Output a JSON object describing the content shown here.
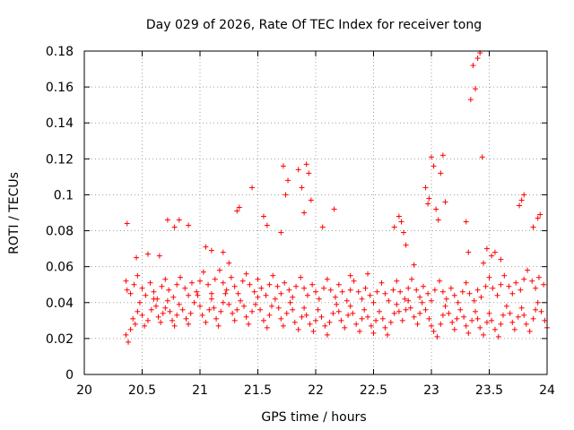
{
  "chart_data": {
    "type": "scatter",
    "title": "Day 029 of 2026, Rate Of TEC Index for receiver tong",
    "xlabel": "GPS time / hours",
    "ylabel": "ROTI / TECUs",
    "xlim": [
      20,
      24
    ],
    "ylim": [
      0,
      0.18
    ],
    "xticks": [
      "20",
      "20.5",
      "21",
      "21.5",
      "22",
      "22.5",
      "23",
      "23.5",
      "24"
    ],
    "yticks": [
      "0",
      "0.02",
      "0.04",
      "0.06",
      "0.08",
      "0.1",
      "0.12",
      "0.14",
      "0.16",
      "0.18"
    ],
    "grid": true,
    "marker": "+",
    "color": "#ff0000",
    "series": [
      {
        "name": "ROTI",
        "x": [
          20.36,
          20.38,
          20.4,
          20.42,
          20.44,
          20.46,
          20.48,
          20.5,
          20.52,
          20.55,
          20.58,
          20.6,
          20.62,
          20.64,
          20.66,
          20.68,
          20.7,
          20.72,
          20.74,
          20.76,
          20.78,
          20.8,
          20.82,
          20.85,
          20.88,
          20.9,
          20.92,
          20.95,
          20.98,
          21.0,
          21.02,
          21.05,
          21.08,
          21.1,
          21.12,
          21.14,
          21.16,
          21.18,
          21.2,
          21.22,
          21.25,
          21.28,
          21.3,
          21.32,
          21.35,
          21.38,
          21.4,
          21.42,
          21.45,
          21.48,
          21.5,
          21.52,
          21.55,
          21.58,
          21.6,
          21.62,
          21.65,
          21.68,
          21.7,
          21.72,
          21.75,
          21.78,
          21.8,
          21.82,
          21.85,
          21.88,
          21.9,
          21.92,
          21.95,
          21.98,
          22.0,
          22.02,
          22.05,
          22.08,
          22.1,
          22.12,
          22.15,
          22.18,
          22.2,
          22.22,
          22.25,
          22.28,
          22.3,
          22.32,
          22.35,
          22.38,
          22.4,
          22.42,
          22.45,
          22.48,
          22.5,
          22.52,
          22.55,
          22.58,
          22.6,
          22.62,
          22.65,
          22.68,
          22.7,
          22.72,
          22.75,
          22.78,
          22.8,
          22.82,
          22.85,
          22.88,
          22.9,
          22.92,
          22.95,
          22.98,
          23.0,
          23.02,
          23.05,
          23.08,
          23.1,
          23.12,
          23.15,
          23.18,
          23.2,
          23.22,
          23.25,
          23.28,
          23.3,
          23.32,
          23.35,
          23.38,
          23.4,
          23.42,
          23.45,
          23.48,
          23.5,
          23.52,
          23.55,
          23.58,
          23.6,
          23.62,
          23.65,
          23.68,
          23.7,
          23.72,
          23.75,
          23.78,
          23.8,
          23.82,
          23.85,
          23.88,
          23.9,
          23.92,
          23.95,
          23.98,
          24.0,
          20.36,
          20.37,
          20.4,
          20.43,
          20.46,
          20.5,
          20.53,
          20.57,
          20.6,
          20.63,
          20.67,
          20.7,
          20.73,
          20.77,
          20.8,
          20.83,
          20.87,
          20.9,
          20.93,
          20.97,
          21.0,
          21.03,
          21.07,
          21.1,
          21.13,
          21.17,
          21.2,
          21.23,
          21.27,
          21.3,
          21.33,
          21.37,
          21.4,
          21.43,
          21.47,
          21.5,
          21.53,
          21.57,
          21.6,
          21.63,
          21.67,
          21.7,
          21.73,
          21.77,
          21.8,
          21.83,
          21.87,
          21.9,
          21.93,
          21.97,
          22.0,
          22.03,
          22.07,
          22.1,
          22.13,
          22.17,
          22.2,
          22.23,
          22.27,
          22.3,
          22.33,
          22.37,
          22.4,
          22.43,
          22.47,
          22.5,
          22.53,
          22.57,
          22.6,
          22.63,
          22.67,
          22.7,
          22.73,
          22.77,
          22.8,
          22.83,
          22.87,
          22.9,
          22.93,
          22.97,
          23.0,
          23.03,
          23.07,
          23.1,
          23.13,
          23.17,
          23.2,
          23.23,
          23.27,
          23.3,
          23.33,
          23.37,
          23.4,
          23.43,
          23.47,
          23.5,
          23.53,
          23.57,
          23.6,
          23.63,
          23.67,
          23.7,
          23.73,
          23.77,
          23.8,
          23.83,
          23.87,
          23.9,
          23.93,
          23.97,
          20.37,
          20.45,
          20.55,
          20.72,
          20.78,
          20.82,
          21.05,
          21.1,
          21.32,
          21.34,
          21.45,
          21.55,
          21.58,
          21.7,
          21.72,
          21.74,
          21.76,
          21.85,
          21.88,
          21.9,
          21.92,
          21.94,
          21.96,
          22.06,
          22.16,
          22.68,
          22.72,
          22.74,
          22.76,
          22.78,
          22.95,
          22.97,
          22.98,
          23.0,
          23.02,
          23.04,
          23.06,
          23.08,
          23.1,
          23.12,
          23.3,
          23.32,
          23.34,
          23.36,
          23.38,
          23.4,
          23.42,
          23.44,
          23.76,
          23.78,
          23.8,
          23.92,
          23.94,
          23.88,
          23.6,
          23.55,
          23.45,
          23.48,
          23.52,
          21.2,
          21.25,
          20.65,
          20.9,
          22.3,
          22.85,
          22.45
        ],
        "y": [
          0.022,
          0.018,
          0.025,
          0.031,
          0.028,
          0.035,
          0.04,
          0.033,
          0.027,
          0.03,
          0.036,
          0.042,
          0.038,
          0.032,
          0.029,
          0.034,
          0.037,
          0.041,
          0.035,
          0.03,
          0.027,
          0.033,
          0.039,
          0.036,
          0.031,
          0.028,
          0.034,
          0.04,
          0.044,
          0.038,
          0.033,
          0.029,
          0.036,
          0.042,
          0.037,
          0.031,
          0.027,
          0.035,
          0.04,
          0.045,
          0.039,
          0.034,
          0.03,
          0.036,
          0.041,
          0.038,
          0.032,
          0.028,
          0.035,
          0.039,
          0.043,
          0.036,
          0.03,
          0.026,
          0.033,
          0.038,
          0.042,
          0.037,
          0.031,
          0.027,
          0.034,
          0.04,
          0.036,
          0.029,
          0.025,
          0.032,
          0.037,
          0.033,
          0.028,
          0.024,
          0.03,
          0.036,
          0.032,
          0.027,
          0.022,
          0.029,
          0.034,
          0.039,
          0.035,
          0.03,
          0.026,
          0.033,
          0.038,
          0.034,
          0.028,
          0.024,
          0.031,
          0.036,
          0.032,
          0.027,
          0.023,
          0.03,
          0.035,
          0.031,
          0.026,
          0.022,
          0.029,
          0.034,
          0.039,
          0.035,
          0.03,
          0.036,
          0.041,
          0.037,
          0.032,
          0.028,
          0.034,
          0.04,
          0.036,
          0.031,
          0.027,
          0.024,
          0.021,
          0.028,
          0.033,
          0.038,
          0.034,
          0.029,
          0.025,
          0.031,
          0.036,
          0.032,
          0.027,
          0.023,
          0.03,
          0.035,
          0.031,
          0.026,
          0.022,
          0.029,
          0.034,
          0.03,
          0.025,
          0.021,
          0.028,
          0.033,
          0.038,
          0.034,
          0.029,
          0.025,
          0.032,
          0.037,
          0.033,
          0.028,
          0.024,
          0.031,
          0.036,
          0.04,
          0.035,
          0.03,
          0.026,
          0.052,
          0.047,
          0.045,
          0.05,
          0.055,
          0.048,
          0.044,
          0.051,
          0.046,
          0.042,
          0.049,
          0.053,
          0.047,
          0.043,
          0.05,
          0.054,
          0.048,
          0.044,
          0.051,
          0.046,
          0.052,
          0.057,
          0.05,
          0.045,
          0.053,
          0.058,
          0.051,
          0.047,
          0.054,
          0.049,
          0.045,
          0.052,
          0.056,
          0.05,
          0.046,
          0.053,
          0.048,
          0.044,
          0.05,
          0.055,
          0.049,
          0.045,
          0.051,
          0.047,
          0.043,
          0.049,
          0.054,
          0.048,
          0.044,
          0.05,
          0.046,
          0.042,
          0.048,
          0.053,
          0.047,
          0.043,
          0.05,
          0.046,
          0.041,
          0.047,
          0.052,
          0.046,
          0.042,
          0.048,
          0.044,
          0.04,
          0.046,
          0.051,
          0.045,
          0.041,
          0.047,
          0.052,
          0.046,
          0.042,
          0.048,
          0.053,
          0.047,
          0.043,
          0.049,
          0.045,
          0.041,
          0.047,
          0.052,
          0.046,
          0.042,
          0.048,
          0.044,
          0.04,
          0.046,
          0.051,
          0.045,
          0.041,
          0.047,
          0.043,
          0.049,
          0.054,
          0.048,
          0.044,
          0.05,
          0.055,
          0.049,
          0.045,
          0.051,
          0.047,
          0.053,
          0.058,
          0.052,
          0.048,
          0.054,
          0.05,
          0.084,
          0.065,
          0.067,
          0.086,
          0.082,
          0.086,
          0.071,
          0.069,
          0.091,
          0.093,
          0.104,
          0.088,
          0.083,
          0.079,
          0.116,
          0.1,
          0.108,
          0.114,
          0.104,
          0.09,
          0.117,
          0.112,
          0.097,
          0.082,
          0.092,
          0.082,
          0.088,
          0.085,
          0.079,
          0.072,
          0.104,
          0.095,
          0.098,
          0.121,
          0.116,
          0.092,
          0.086,
          0.112,
          0.122,
          0.096,
          0.085,
          0.068,
          0.153,
          0.172,
          0.159,
          0.176,
          0.179,
          0.121,
          0.094,
          0.097,
          0.1,
          0.087,
          0.089,
          0.082,
          0.064,
          0.068,
          0.062,
          0.07,
          0.066,
          0.068,
          0.062,
          0.066,
          0.083,
          0.055,
          0.061,
          0.056
        ]
      }
    ]
  }
}
